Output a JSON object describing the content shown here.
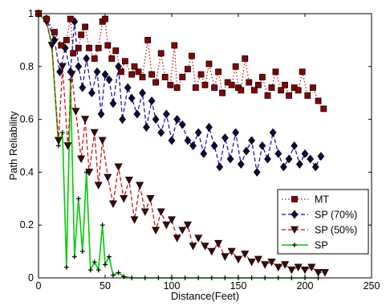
{
  "chart_data": {
    "type": "line",
    "title": "",
    "xlabel": "Distance(Feet)",
    "ylabel": "Path Reliability",
    "xlim": [
      0,
      250
    ],
    "ylim": [
      0,
      1
    ],
    "xticks": [
      0,
      50,
      100,
      150,
      200,
      250
    ],
    "yticks": [
      0,
      0.2,
      0.4,
      0.6,
      0.8,
      1
    ],
    "xtick_labels": [
      "0",
      "50",
      "100",
      "150",
      "200",
      "250"
    ],
    "ytick_labels": [
      "0",
      "0.2",
      "0.4",
      "0.6",
      "0.8",
      "1"
    ],
    "grid": false,
    "legend_position": "lower-right",
    "series": [
      {
        "name": "MT",
        "color": "#cc0000",
        "line_style": "dotted",
        "marker": "square",
        "x": [
          0,
          6,
          12,
          17,
          21,
          24,
          26,
          30,
          32,
          35,
          38,
          42,
          45,
          48,
          50,
          52,
          55,
          58,
          62,
          65,
          70,
          72,
          75,
          78,
          82,
          85,
          88,
          92,
          95,
          99,
          102,
          104,
          108,
          112,
          115,
          118,
          122,
          125,
          128,
          132,
          135,
          138,
          142,
          145,
          148,
          150,
          152,
          155,
          158,
          162,
          165,
          168,
          172,
          175,
          178,
          182,
          185,
          188,
          192,
          195,
          198,
          202,
          206,
          210,
          214
        ],
        "y": [
          1.0,
          0.98,
          0.93,
          0.88,
          0.9,
          0.98,
          0.85,
          0.87,
          0.92,
          0.95,
          0.87,
          0.83,
          0.87,
          0.97,
          0.98,
          0.88,
          0.83,
          0.86,
          0.78,
          0.82,
          0.77,
          0.8,
          0.78,
          0.76,
          0.9,
          0.77,
          0.74,
          0.85,
          0.76,
          0.73,
          0.88,
          0.72,
          0.76,
          0.79,
          0.84,
          0.72,
          0.77,
          0.73,
          0.81,
          0.72,
          0.78,
          0.7,
          0.74,
          0.73,
          0.8,
          0.72,
          0.71,
          0.83,
          0.74,
          0.71,
          0.73,
          0.76,
          0.69,
          0.72,
          0.78,
          0.71,
          0.73,
          0.69,
          0.72,
          0.71,
          0.78,
          0.69,
          0.72,
          0.67,
          0.64
        ]
      },
      {
        "name": "SP (70%)",
        "color": "#0000cc",
        "line_style": "dashed",
        "marker": "diamond",
        "x": [
          0,
          6,
          12,
          16,
          20,
          24,
          27,
          30,
          33,
          36,
          40,
          44,
          47,
          50,
          53,
          56,
          60,
          63,
          67,
          70,
          74,
          78,
          81,
          85,
          88,
          92,
          96,
          100,
          104,
          108,
          112,
          116,
          120,
          124,
          128,
          132,
          136,
          140,
          144,
          148,
          152,
          156,
          160,
          164,
          168,
          172,
          176,
          180,
          184,
          188,
          192,
          196,
          200,
          204,
          208,
          212
        ],
        "y": [
          1.0,
          0.98,
          0.9,
          0.78,
          0.87,
          0.78,
          0.97,
          0.8,
          0.72,
          0.83,
          0.7,
          0.78,
          0.62,
          0.77,
          0.75,
          0.66,
          0.8,
          0.6,
          0.72,
          0.68,
          0.62,
          0.7,
          0.57,
          0.67,
          0.6,
          0.55,
          0.62,
          0.52,
          0.6,
          0.58,
          0.52,
          0.5,
          0.55,
          0.47,
          0.57,
          0.5,
          0.42,
          0.53,
          0.45,
          0.55,
          0.43,
          0.48,
          0.52,
          0.4,
          0.5,
          0.45,
          0.55,
          0.47,
          0.42,
          0.45,
          0.5,
          0.43,
          0.47,
          0.45,
          0.42,
          0.46
        ]
      },
      {
        "name": "SP (50%)",
        "color": "#cc0000",
        "line_style": "dashed",
        "marker": "triangle-down",
        "x": [
          0,
          6,
          10,
          15,
          18,
          22,
          25,
          28,
          32,
          35,
          38,
          42,
          45,
          48,
          52,
          56,
          60,
          64,
          68,
          72,
          76,
          80,
          84,
          88,
          92,
          96,
          100,
          104,
          108,
          112,
          116,
          120,
          125,
          130,
          135,
          140,
          145,
          150,
          155,
          160,
          165,
          170,
          175,
          180,
          185,
          190,
          195,
          200,
          205,
          210,
          215
        ],
        "y": [
          1.0,
          0.97,
          0.88,
          0.52,
          0.8,
          0.5,
          0.77,
          0.63,
          0.45,
          0.6,
          0.4,
          0.55,
          0.35,
          0.52,
          0.38,
          0.28,
          0.42,
          0.3,
          0.37,
          0.22,
          0.35,
          0.25,
          0.3,
          0.18,
          0.25,
          0.2,
          0.22,
          0.15,
          0.18,
          0.2,
          0.12,
          0.15,
          0.12,
          0.1,
          0.13,
          0.08,
          0.1,
          0.07,
          0.09,
          0.06,
          0.07,
          0.05,
          0.06,
          0.04,
          0.05,
          0.03,
          0.04,
          0.03,
          0.04,
          0.02,
          0.02
        ]
      },
      {
        "name": "SP",
        "color": "#00cc00",
        "line_style": "solid",
        "marker": "plus",
        "x": [
          0,
          6,
          10,
          15,
          18,
          21,
          24,
          27,
          30,
          33,
          36,
          39,
          42,
          45,
          48,
          50,
          53,
          56,
          60,
          64,
          70,
          80,
          90,
          100,
          110,
          120,
          130,
          140,
          150,
          160,
          170,
          180,
          190,
          200,
          210
        ],
        "y": [
          1.0,
          0.97,
          0.88,
          0.5,
          0.55,
          0.04,
          0.75,
          0.08,
          0.3,
          0.1,
          0.4,
          0.03,
          0.06,
          0.03,
          0.2,
          0.05,
          0.08,
          0.01,
          0.02,
          0.005,
          0.0,
          0.0,
          0.0,
          0.0,
          0.0,
          0.0,
          0.0,
          0.0,
          0.0,
          0.0,
          0.0,
          0.0,
          0.0,
          0.0,
          0.0
        ]
      }
    ]
  }
}
